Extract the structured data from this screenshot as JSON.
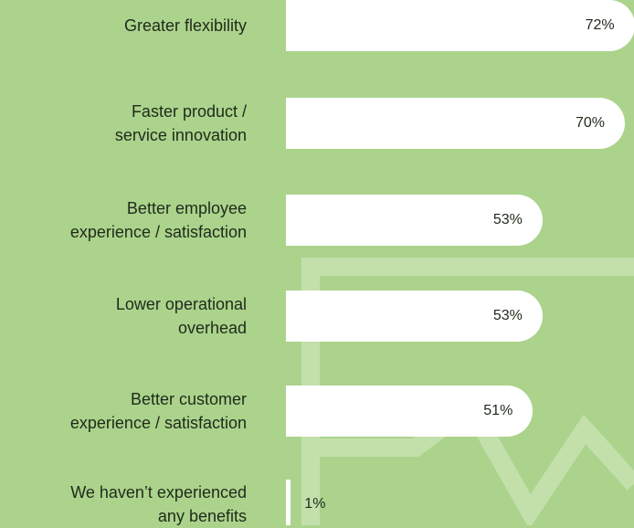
{
  "chart_data": {
    "type": "bar",
    "orientation": "horizontal",
    "categories": [
      "Greater flexibility",
      "Faster product /\nservice innovation",
      "Better employee\nexperience / satisfaction",
      "Lower operational\noverhead",
      "Better customer\nexperience / satisfaction",
      "We haven’t experienced\nany benefits"
    ],
    "values": [
      72,
      70,
      53,
      53,
      51,
      1
    ],
    "value_labels": [
      "72%",
      "70%",
      "53%",
      "53%",
      "51%",
      "1%"
    ],
    "color": "#ffffff"
  }
}
